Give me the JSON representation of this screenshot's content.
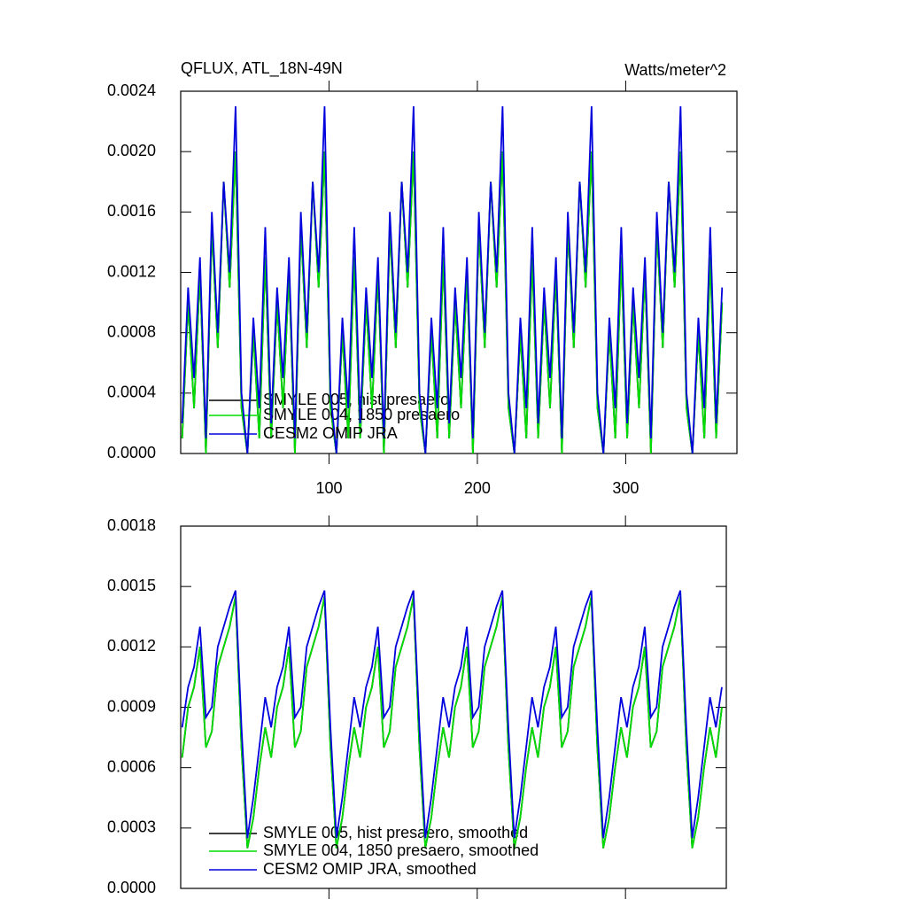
{
  "chart_data": [
    {
      "type": "line",
      "title": "QFLUX, ATL_18N-49N",
      "units": "Watts/meter^2",
      "x": [
        1,
        5,
        9,
        13,
        17,
        21,
        25,
        29,
        33,
        37,
        41,
        45,
        49,
        53,
        57,
        61,
        65,
        69,
        73,
        77,
        81,
        85,
        89,
        93,
        97,
        101,
        105,
        109,
        113,
        117,
        121,
        125,
        129,
        133,
        137,
        141,
        145,
        149,
        153,
        157,
        161,
        165,
        169,
        173,
        177,
        181,
        185,
        189,
        193,
        197,
        201,
        205,
        209,
        213,
        217,
        221,
        225,
        229,
        233,
        237,
        241,
        245,
        249,
        253,
        257,
        261,
        265,
        269,
        273,
        277,
        281,
        285,
        289,
        293,
        297,
        301,
        305,
        309,
        313,
        317,
        321,
        325,
        329,
        333,
        337,
        341,
        345,
        349,
        353,
        357,
        361,
        365
      ],
      "xlim": [
        0,
        375
      ],
      "xticks": [
        100,
        200,
        300
      ],
      "ylim": [
        0,
        0.0024
      ],
      "yticks": [
        {
          "value": 0,
          "label": "0.0000"
        },
        {
          "value": 0.0004,
          "label": "0.0004"
        },
        {
          "value": 0.0008,
          "label": "0.0008"
        },
        {
          "value": 0.0012,
          "label": "0.0012"
        },
        {
          "value": 0.0016,
          "label": "0.0016"
        },
        {
          "value": 0.002,
          "label": "0.0020"
        },
        {
          "value": 0.0024,
          "label": "0.0024"
        }
      ],
      "series": [
        {
          "name": "SMYLE 005, hist presaero",
          "color": "#000000",
          "values": [
            0.0001,
            0.001,
            0.0003,
            0.0012,
            0,
            0.0015,
            0.0007,
            0.0018,
            0.0011,
            0.002,
            0.0003,
            0,
            0.0008,
            0.0001,
            0.0013,
            0.0001,
            0.001,
            0.0003,
            0.0012,
            0,
            0.0015,
            0.0007,
            0.0018,
            0.0011,
            0.002,
            0.0003,
            0,
            0.0008,
            0.0001,
            0.0013,
            0.0001,
            0.001,
            0.0003,
            0.0012,
            0,
            0.0015,
            0.0007,
            0.0018,
            0.0011,
            0.002,
            0.0003,
            0,
            0.0008,
            0.0001,
            0.0013,
            0.0001,
            0.001,
            0.0003,
            0.0012,
            0,
            0.0015,
            0.0007,
            0.0018,
            0.0011,
            0.002,
            0.0003,
            0,
            0.0008,
            0.0001,
            0.0013,
            0.0001,
            0.001,
            0.0003,
            0.0012,
            0,
            0.0015,
            0.0007,
            0.0018,
            0.0011,
            0.002,
            0.0003,
            0,
            0.0008,
            0.0001,
            0.0013,
            0.0001,
            0.001,
            0.0003,
            0.0012,
            0,
            0.0015,
            0.0007,
            0.0018,
            0.0011,
            0.002,
            0.0003,
            0,
            0.0008,
            0.0001,
            0.0013,
            0.0001,
            0.001
          ]
        },
        {
          "name": "SMYLE 004, 1850 presaero",
          "color": "#00dd00",
          "values": [
            0.0001,
            0.001,
            0.0003,
            0.0012,
            0,
            0.0015,
            0.0007,
            0.0018,
            0.0011,
            0.002,
            0.0003,
            0,
            0.0008,
            0.0001,
            0.0013,
            0.0001,
            0.001,
            0.0003,
            0.0012,
            0,
            0.0015,
            0.0007,
            0.0018,
            0.0011,
            0.002,
            0.0003,
            0,
            0.0008,
            0.0001,
            0.0013,
            0.0001,
            0.001,
            0.0003,
            0.0012,
            0,
            0.0015,
            0.0007,
            0.0018,
            0.0011,
            0.002,
            0.0003,
            0,
            0.0008,
            0.0001,
            0.0013,
            0.0001,
            0.001,
            0.0003,
            0.0012,
            0,
            0.0015,
            0.0007,
            0.0018,
            0.0011,
            0.002,
            0.0003,
            0,
            0.0008,
            0.0001,
            0.0013,
            0.0001,
            0.001,
            0.0003,
            0.0012,
            0,
            0.0015,
            0.0007,
            0.0018,
            0.0011,
            0.002,
            0.0003,
            0,
            0.0008,
            0.0001,
            0.0013,
            0.0001,
            0.001,
            0.0003,
            0.0012,
            0,
            0.0015,
            0.0007,
            0.0018,
            0.0011,
            0.002,
            0.0003,
            0,
            0.0008,
            0.0001,
            0.0013,
            0.0001,
            0.001
          ]
        },
        {
          "name": "CESM2 OMIP JRA",
          "color": "#0000dd",
          "values": [
            0.0002,
            0.0011,
            0.0005,
            0.0013,
            0.0001,
            0.0016,
            0.0008,
            0.0018,
            0.0012,
            0.0023,
            0.0004,
            0,
            0.0009,
            0.0003,
            0.0015,
            0.0002,
            0.0011,
            0.0005,
            0.0013,
            0.0001,
            0.0016,
            0.0008,
            0.0018,
            0.0012,
            0.0023,
            0.0004,
            0,
            0.0009,
            0.0003,
            0.0015,
            0.0002,
            0.0011,
            0.0005,
            0.0013,
            0.0001,
            0.0016,
            0.0008,
            0.0018,
            0.0012,
            0.0023,
            0.0004,
            0,
            0.0009,
            0.0003,
            0.0015,
            0.0002,
            0.0011,
            0.0005,
            0.0013,
            0.0001,
            0.0016,
            0.0008,
            0.0018,
            0.0012,
            0.0023,
            0.0004,
            0,
            0.0009,
            0.0003,
            0.0015,
            0.0002,
            0.0011,
            0.0005,
            0.0013,
            0.0001,
            0.0016,
            0.0008,
            0.0018,
            0.0012,
            0.0023,
            0.0004,
            0,
            0.0009,
            0.0003,
            0.0015,
            0.0002,
            0.0011,
            0.0005,
            0.0013,
            0.0001,
            0.0016,
            0.0008,
            0.0018,
            0.0012,
            0.0023,
            0.0004,
            0,
            0.0009,
            0.0003,
            0.0015,
            0.0002,
            0.0011
          ]
        }
      ]
    },
    {
      "type": "line",
      "x": [
        1,
        5,
        9,
        13,
        17,
        21,
        25,
        29,
        33,
        37,
        41,
        45,
        49,
        53,
        57,
        61,
        65,
        69,
        73,
        77,
        81,
        85,
        89,
        93,
        97,
        101,
        105,
        109,
        113,
        117,
        121,
        125,
        129,
        133,
        137,
        141,
        145,
        149,
        153,
        157,
        161,
        165,
        169,
        173,
        177,
        181,
        185,
        189,
        193,
        197,
        201,
        205,
        209,
        213,
        217,
        221,
        225,
        229,
        233,
        237,
        241,
        245,
        249,
        253,
        257,
        261,
        265,
        269,
        273,
        277,
        281,
        285,
        289,
        293,
        297,
        301,
        305,
        309,
        313,
        317,
        321,
        325,
        329,
        333,
        337,
        341,
        345,
        349,
        353,
        357,
        361,
        365
      ],
      "xlim": [
        0,
        368
      ],
      "xticks": [
        100,
        200,
        300
      ],
      "ylim": [
        0,
        0.0018
      ],
      "yticks": [
        {
          "value": 0,
          "label": "0.0000"
        },
        {
          "value": 0.0003,
          "label": "0.0003"
        },
        {
          "value": 0.0006,
          "label": "0.0006"
        },
        {
          "value": 0.0009,
          "label": "0.0009"
        },
        {
          "value": 0.0012,
          "label": "0.0012"
        },
        {
          "value": 0.0015,
          "label": "0.0015"
        },
        {
          "value": 0.0018,
          "label": "0.0018"
        }
      ],
      "series": [
        {
          "name": "SMYLE 005, hist presaero, smoothed",
          "color": "#000000",
          "values": [
            0.00065,
            0.0009,
            0.001,
            0.0012,
            0.0007,
            0.00078,
            0.0011,
            0.0012,
            0.0013,
            0.00145,
            0.0007,
            0.0002,
            0.00035,
            0.0006,
            0.0008,
            0.00065,
            0.0009,
            0.001,
            0.0012,
            0.0007,
            0.00078,
            0.0011,
            0.0012,
            0.0013,
            0.00145,
            0.0007,
            0.0002,
            0.00035,
            0.0006,
            0.0008,
            0.00065,
            0.0009,
            0.001,
            0.0012,
            0.0007,
            0.00078,
            0.0011,
            0.0012,
            0.0013,
            0.00145,
            0.0007,
            0.0002,
            0.00035,
            0.0006,
            0.0008,
            0.00065,
            0.0009,
            0.001,
            0.0012,
            0.0007,
            0.00078,
            0.0011,
            0.0012,
            0.0013,
            0.00145,
            0.0007,
            0.0002,
            0.00035,
            0.0006,
            0.0008,
            0.00065,
            0.0009,
            0.001,
            0.0012,
            0.0007,
            0.00078,
            0.0011,
            0.0012,
            0.0013,
            0.00145,
            0.0007,
            0.0002,
            0.00035,
            0.0006,
            0.0008,
            0.00065,
            0.0009,
            0.001,
            0.0012,
            0.0007,
            0.00078,
            0.0011,
            0.0012,
            0.0013,
            0.00145,
            0.0007,
            0.0002,
            0.00035,
            0.0006,
            0.0008,
            0.00065,
            0.0009
          ]
        },
        {
          "name": "SMYLE 004, 1850 presaero, smoothed",
          "color": "#00dd00",
          "values": [
            0.00065,
            0.0009,
            0.001,
            0.0012,
            0.0007,
            0.00078,
            0.0011,
            0.0012,
            0.0013,
            0.00145,
            0.0007,
            0.0002,
            0.00035,
            0.0006,
            0.0008,
            0.00065,
            0.0009,
            0.001,
            0.0012,
            0.0007,
            0.00078,
            0.0011,
            0.0012,
            0.0013,
            0.00145,
            0.0007,
            0.0002,
            0.00035,
            0.0006,
            0.0008,
            0.00065,
            0.0009,
            0.001,
            0.0012,
            0.0007,
            0.00078,
            0.0011,
            0.0012,
            0.0013,
            0.00145,
            0.0007,
            0.0002,
            0.00035,
            0.0006,
            0.0008,
            0.00065,
            0.0009,
            0.001,
            0.0012,
            0.0007,
            0.00078,
            0.0011,
            0.0012,
            0.0013,
            0.00145,
            0.0007,
            0.0002,
            0.00035,
            0.0006,
            0.0008,
            0.00065,
            0.0009,
            0.001,
            0.0012,
            0.0007,
            0.00078,
            0.0011,
            0.0012,
            0.0013,
            0.00145,
            0.0007,
            0.0002,
            0.00035,
            0.0006,
            0.0008,
            0.00065,
            0.0009,
            0.001,
            0.0012,
            0.0007,
            0.00078,
            0.0011,
            0.0012,
            0.0013,
            0.00145,
            0.0007,
            0.0002,
            0.00035,
            0.0006,
            0.0008,
            0.00065,
            0.0009
          ]
        },
        {
          "name": "CESM2 OMIP JRA, smoothed",
          "color": "#0000dd",
          "values": [
            0.0008,
            0.001,
            0.0011,
            0.0013,
            0.00085,
            0.0009,
            0.0012,
            0.0013,
            0.0014,
            0.00148,
            0.0008,
            0.00025,
            0.00045,
            0.0007,
            0.00095,
            0.0008,
            0.001,
            0.0011,
            0.0013,
            0.00085,
            0.0009,
            0.0012,
            0.0013,
            0.0014,
            0.00148,
            0.0008,
            0.00025,
            0.00045,
            0.0007,
            0.00095,
            0.0008,
            0.001,
            0.0011,
            0.0013,
            0.00085,
            0.0009,
            0.0012,
            0.0013,
            0.0014,
            0.00148,
            0.0008,
            0.00025,
            0.00045,
            0.0007,
            0.00095,
            0.0008,
            0.001,
            0.0011,
            0.0013,
            0.00085,
            0.0009,
            0.0012,
            0.0013,
            0.0014,
            0.00148,
            0.0008,
            0.00025,
            0.00045,
            0.0007,
            0.00095,
            0.0008,
            0.001,
            0.0011,
            0.0013,
            0.00085,
            0.0009,
            0.0012,
            0.0013,
            0.0014,
            0.00148,
            0.0008,
            0.00025,
            0.00045,
            0.0007,
            0.00095,
            0.0008,
            0.001,
            0.0011,
            0.0013,
            0.00085,
            0.0009,
            0.0012,
            0.0013,
            0.0014,
            0.00148,
            0.0008,
            0.00025,
            0.00045,
            0.0007,
            0.00095,
            0.0008,
            0.001
          ]
        }
      ]
    }
  ]
}
